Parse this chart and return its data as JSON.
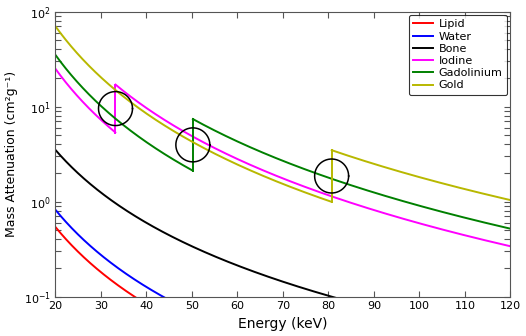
{
  "xlabel": "Energy (keV)",
  "ylabel": "Mass Attenuation (cm²g⁻¹)",
  "xlim": [
    20,
    120
  ],
  "ylim": [
    0.1,
    100
  ],
  "x_ticks": [
    20,
    30,
    40,
    50,
    60,
    70,
    80,
    90,
    100,
    110,
    120
  ],
  "legend_labels": [
    "Lipid",
    "Water",
    "Bone",
    "Iodine",
    "Gadolinium",
    "Gold"
  ],
  "colors": {
    "lipid": "#ff0000",
    "water": "#0000ff",
    "bone": "#000000",
    "iodine": "#ff00ff",
    "gadolinium": "#008000",
    "gold": "#b8b800"
  },
  "k_edge_iodine": 33.2,
  "k_edge_gadolinium": 50.2,
  "k_edge_gold": 80.7,
  "lipid_20keV": 0.54,
  "water_20keV": 0.82,
  "bone_20keV": 3.5,
  "iodine_pre_20keV": 25.0,
  "iodine_jump_factor": 3.2,
  "gad_pre_20keV": 35.0,
  "gad_jump_factor": 3.5,
  "gold_pre_20keV": 70.0,
  "gold_jump_factor": 3.5,
  "power_soft": -2.7,
  "power_bone": -2.55,
  "power_contrast": -3.05,
  "background": "#ffffff"
}
